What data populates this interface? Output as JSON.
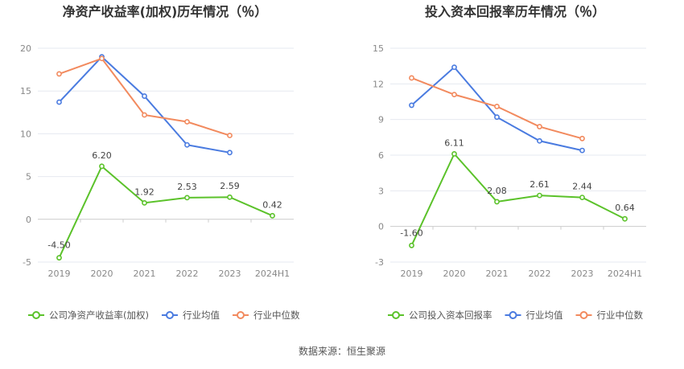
{
  "footer_source": "数据来源：恒生聚源",
  "chart_data": [
    {
      "type": "line",
      "title": "净资产收益率(加权)历年情况（％）",
      "categories": [
        "2019",
        "2020",
        "2021",
        "2022",
        "2023",
        "2024H1"
      ],
      "ylim": [
        -5,
        20
      ],
      "yticks": [
        -5,
        0,
        5,
        10,
        15,
        20
      ],
      "grid": true,
      "legend_position": "bottom",
      "series": [
        {
          "name": "公司净资产收益率(加权)",
          "color": "#5bc22a",
          "values": [
            -4.5,
            6.2,
            1.92,
            2.53,
            2.59,
            0.42
          ],
          "labels": [
            "-4.50",
            "6.20",
            "1.92",
            "2.53",
            "2.59",
            "0.42"
          ]
        },
        {
          "name": "行业均值",
          "color": "#4a7be0",
          "values": [
            13.7,
            19.0,
            14.4,
            8.7,
            7.8,
            null
          ]
        },
        {
          "name": "行业中位数",
          "color": "#f28a5e",
          "values": [
            17.0,
            18.8,
            12.2,
            11.4,
            9.8,
            null
          ]
        }
      ]
    },
    {
      "type": "line",
      "title": "投入资本回报率历年情况（％）",
      "categories": [
        "2019",
        "2020",
        "2021",
        "2022",
        "2023",
        "2024H1"
      ],
      "ylim": [
        -3,
        15
      ],
      "yticks": [
        -3,
        0,
        3,
        6,
        9,
        12,
        15
      ],
      "grid": true,
      "legend_position": "bottom",
      "series": [
        {
          "name": "公司投入资本回报率",
          "color": "#5bc22a",
          "values": [
            -1.6,
            6.11,
            2.08,
            2.61,
            2.44,
            0.64
          ],
          "labels": [
            "-1.60",
            "6.11",
            "2.08",
            "2.61",
            "2.44",
            "0.64"
          ]
        },
        {
          "name": "行业均值",
          "color": "#4a7be0",
          "values": [
            10.2,
            13.4,
            9.2,
            7.2,
            6.4,
            null
          ]
        },
        {
          "name": "行业中位数",
          "color": "#f28a5e",
          "values": [
            12.5,
            11.1,
            10.1,
            8.4,
            7.4,
            null
          ]
        }
      ]
    }
  ]
}
